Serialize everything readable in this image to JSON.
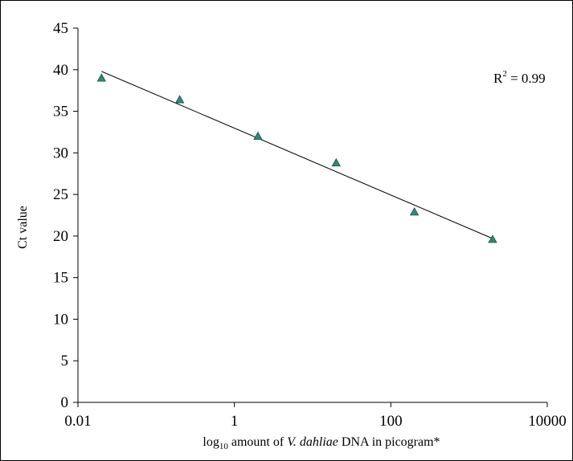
{
  "chart_data": {
    "type": "scatter",
    "xscale": "log",
    "xlim": [
      0.01,
      10000
    ],
    "ylim": [
      0,
      45
    ],
    "x_ticks": [
      0.01,
      1,
      100,
      10000
    ],
    "x_tick_labels": [
      "0.01",
      "1",
      "100",
      "10000"
    ],
    "y_ticks": [
      0,
      5,
      10,
      15,
      20,
      25,
      30,
      35,
      40,
      45
    ],
    "y_tick_labels": [
      "0",
      "5",
      "10",
      "15",
      "20",
      "25",
      "30",
      "35",
      "40",
      "45"
    ],
    "xlabel": {
      "prefix": "log",
      "subscript": "10",
      "mid": " amount of ",
      "italic": "V. dahliae",
      "suffix": " DNA in picogram*"
    },
    "ylabel": "Ct value",
    "annotation": {
      "base": "R",
      "superscript": "2",
      "rest": " = 0.99"
    },
    "series": [
      {
        "marker": "triangle",
        "color": "#2e8b7a",
        "x": [
          0.02,
          0.2,
          2,
          20,
          200,
          2000
        ],
        "y": [
          39.0,
          36.4,
          32.0,
          28.8,
          22.9,
          19.6
        ]
      }
    ],
    "trendline": {
      "type": "log-linear",
      "x": [
        0.02,
        2000
      ],
      "y": [
        39.8,
        19.7
      ]
    },
    "grid": false
  }
}
